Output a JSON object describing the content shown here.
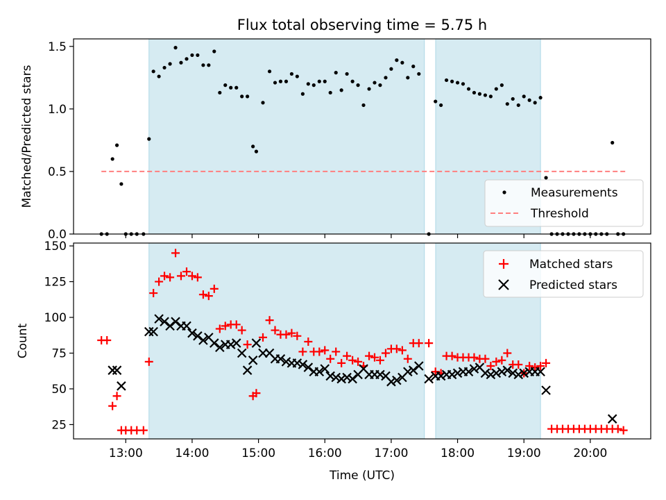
{
  "title": "Flux total observing time = 5.75 h",
  "colors": {
    "shade": "#add8e6",
    "measurement": "#000000",
    "threshold": "#ff7f7f",
    "matched": "#ff0000",
    "predicted": "#000000"
  },
  "chart_data": [
    {
      "type": "scatter",
      "ylabel": "Matched/Predicted stars",
      "xlim": [
        12.213,
        20.911
      ],
      "ylim": [
        0,
        1.56
      ],
      "yticks": [
        0.0,
        0.5,
        1.0,
        1.5
      ],
      "ytick_labels": [
        "0.0",
        "0.5",
        "1.0",
        "1.5"
      ],
      "threshold": {
        "value": 0.5,
        "x": [
          12.633,
          20.533
        ],
        "label": "Threshold"
      },
      "legend": {
        "position": "bottom-right",
        "entries": [
          "Measurements",
          "Threshold"
        ]
      },
      "shaded_intervals": [
        [
          13.35,
          17.5
        ],
        [
          17.67,
          19.25
        ]
      ],
      "series": [
        {
          "name": "Measurements",
          "marker": "dot",
          "x": [
            12.633,
            12.717,
            12.8,
            12.867,
            12.933,
            13.0,
            13.083,
            13.167,
            13.267,
            13.35,
            13.417,
            13.5,
            13.583,
            13.667,
            13.75,
            13.833,
            13.917,
            14.0,
            14.083,
            14.167,
            14.25,
            14.333,
            14.417,
            14.5,
            14.583,
            14.667,
            14.75,
            14.833,
            14.917,
            14.967,
            15.067,
            15.167,
            15.25,
            15.333,
            15.417,
            15.5,
            15.583,
            15.667,
            15.75,
            15.833,
            15.917,
            16.0,
            16.083,
            16.167,
            16.25,
            16.333,
            16.417,
            16.5,
            16.583,
            16.667,
            16.75,
            16.833,
            16.917,
            17.0,
            17.083,
            17.167,
            17.25,
            17.333,
            17.417,
            17.567,
            17.667,
            17.75,
            17.833,
            17.917,
            18.0,
            18.083,
            18.167,
            18.25,
            18.333,
            18.417,
            18.5,
            18.583,
            18.667,
            18.75,
            18.833,
            18.917,
            19.0,
            19.083,
            19.167,
            19.25,
            19.333,
            19.417,
            19.5,
            19.583,
            19.667,
            19.75,
            19.833,
            19.917,
            20.0,
            20.083,
            20.167,
            20.25,
            20.333,
            20.417,
            20.5
          ],
          "y": [
            0,
            0,
            0.6,
            0.71,
            0.4,
            0,
            0,
            0,
            0,
            0.76,
            1.3,
            1.26,
            1.33,
            1.36,
            1.49,
            1.37,
            1.4,
            1.43,
            1.43,
            1.35,
            1.35,
            1.46,
            1.13,
            1.19,
            1.17,
            1.17,
            1.1,
            1.1,
            0.7,
            0.66,
            1.05,
            1.3,
            1.21,
            1.22,
            1.22,
            1.28,
            1.26,
            1.12,
            1.2,
            1.19,
            1.22,
            1.22,
            1.13,
            1.29,
            1.15,
            1.28,
            1.22,
            1.19,
            1.03,
            1.16,
            1.21,
            1.19,
            1.25,
            1.32,
            1.39,
            1.37,
            1.25,
            1.34,
            1.28,
            0,
            1.06,
            1.03,
            1.23,
            1.22,
            1.21,
            1.2,
            1.16,
            1.13,
            1.12,
            1.11,
            1.1,
            1.16,
            1.19,
            1.04,
            1.08,
            1.03,
            1.1,
            1.07,
            1.05,
            1.09,
            0.45,
            0,
            0,
            0,
            0,
            0,
            0,
            0,
            0,
            0,
            0,
            0,
            0.73,
            0,
            0
          ]
        }
      ]
    },
    {
      "type": "scatter",
      "xlabel": "Time (UTC)",
      "ylabel": "Count",
      "xlim": [
        12.213,
        20.911
      ],
      "ylim": [
        15,
        152
      ],
      "xticks": [
        13,
        14,
        15,
        16,
        17,
        18,
        19,
        20
      ],
      "xtick_labels": [
        "13:00",
        "14:00",
        "15:00",
        "16:00",
        "17:00",
        "18:00",
        "19:00",
        "20:00"
      ],
      "yticks": [
        25,
        50,
        75,
        100,
        125,
        150
      ],
      "ytick_labels": [
        "25",
        "50",
        "75",
        "100",
        "125",
        "150"
      ],
      "legend": {
        "position": "top-right",
        "entries": [
          "Matched stars",
          "Predicted stars"
        ]
      },
      "shaded_intervals": [
        [
          13.35,
          17.5
        ],
        [
          17.67,
          19.25
        ]
      ],
      "series": [
        {
          "name": "Matched stars",
          "marker": "plus",
          "x": [
            12.633,
            12.717,
            12.8,
            12.867,
            12.933,
            13.0,
            13.083,
            13.167,
            13.267,
            13.35,
            13.417,
            13.5,
            13.583,
            13.667,
            13.75,
            13.833,
            13.917,
            14.0,
            14.083,
            14.167,
            14.25,
            14.333,
            14.417,
            14.5,
            14.583,
            14.667,
            14.75,
            14.833,
            14.917,
            14.967,
            15.067,
            15.167,
            15.25,
            15.333,
            15.417,
            15.5,
            15.583,
            15.667,
            15.75,
            15.833,
            15.917,
            16.0,
            16.083,
            16.167,
            16.25,
            16.333,
            16.417,
            16.5,
            16.583,
            16.667,
            16.75,
            16.833,
            16.917,
            17.0,
            17.083,
            17.167,
            17.25,
            17.333,
            17.417,
            17.567,
            17.667,
            17.75,
            17.833,
            17.917,
            18.0,
            18.083,
            18.167,
            18.25,
            18.333,
            18.417,
            18.5,
            18.583,
            18.667,
            18.75,
            18.833,
            18.917,
            19.0,
            19.083,
            19.167,
            19.25,
            19.333,
            19.417,
            19.5,
            19.583,
            19.667,
            19.75,
            19.833,
            19.917,
            20.0,
            20.083,
            20.167,
            20.25,
            20.333,
            20.417,
            20.5
          ],
          "y": [
            84,
            84,
            38,
            45,
            21,
            21,
            21,
            21,
            21,
            69,
            117,
            125,
            129,
            128,
            145,
            129,
            132,
            129,
            128,
            116,
            115,
            120,
            92,
            94,
            95,
            95,
            91,
            81,
            45,
            47,
            86,
            98,
            91,
            88,
            88,
            89,
            87,
            76,
            83,
            76,
            76,
            77,
            71,
            76,
            68,
            73,
            70,
            69,
            66,
            73,
            72,
            70,
            75,
            78,
            78,
            77,
            71,
            82,
            82,
            82,
            62,
            61,
            73,
            73,
            72,
            72,
            72,
            72,
            71,
            71,
            66,
            69,
            70,
            75,
            67,
            67,
            61,
            66,
            65,
            66,
            68,
            22,
            22,
            22,
            22,
            22,
            22,
            22,
            22,
            22,
            22,
            22,
            22,
            22,
            21
          ]
        },
        {
          "name": "Predicted stars",
          "marker": "x",
          "x": [
            12.633,
            12.717,
            12.8,
            12.867,
            12.933,
            13.0,
            13.083,
            13.167,
            13.267,
            13.35,
            13.417,
            13.5,
            13.583,
            13.667,
            13.75,
            13.833,
            13.917,
            14.0,
            14.083,
            14.167,
            14.25,
            14.333,
            14.417,
            14.5,
            14.583,
            14.667,
            14.75,
            14.833,
            14.917,
            14.967,
            15.067,
            15.167,
            15.25,
            15.333,
            15.417,
            15.5,
            15.583,
            15.667,
            15.75,
            15.833,
            15.917,
            16.0,
            16.083,
            16.167,
            16.25,
            16.333,
            16.417,
            16.5,
            16.583,
            16.667,
            16.75,
            16.833,
            16.917,
            17.0,
            17.083,
            17.167,
            17.25,
            17.333,
            17.417,
            17.567,
            17.667,
            17.75,
            17.833,
            17.917,
            18.0,
            18.083,
            18.167,
            18.25,
            18.333,
            18.417,
            18.5,
            18.583,
            18.667,
            18.75,
            18.833,
            18.917,
            19.0,
            19.083,
            19.167,
            19.25,
            19.333,
            20.333
          ],
          "y": [
            null,
            null,
            63,
            63,
            52,
            null,
            null,
            null,
            null,
            90,
            90,
            99,
            97,
            94,
            97,
            94,
            94,
            89,
            87,
            84,
            86,
            82,
            79,
            81,
            81,
            82,
            75,
            63,
            70,
            82,
            75,
            75,
            71,
            71,
            69,
            68,
            68,
            67,
            65,
            62,
            62,
            64,
            59,
            58,
            57,
            58,
            57,
            60,
            64,
            60,
            60,
            60,
            59,
            55,
            56,
            58,
            62,
            63,
            66,
            57,
            59,
            59,
            60,
            60,
            61,
            62,
            62,
            64,
            65,
            61,
            60,
            61,
            62,
            63,
            61,
            60,
            61,
            62,
            62,
            62,
            49,
            29
          ]
        }
      ]
    }
  ]
}
